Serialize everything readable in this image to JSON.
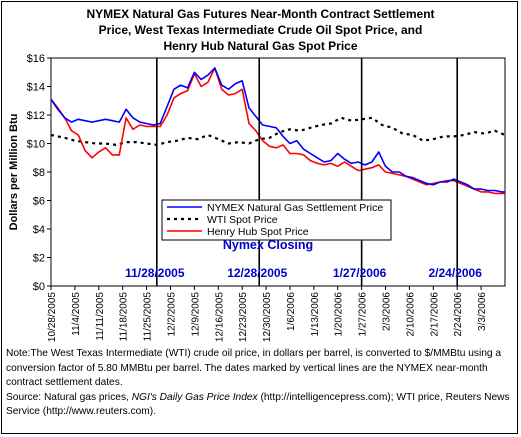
{
  "chart_data": {
    "type": "line",
    "title": [
      "NYMEX Natural Gas Futures Near-Month Contract Settlement",
      "Price, West Texas Intermediate Crude Oil Spot Price, and",
      "Henry Hub Natural Gas Spot Price"
    ],
    "ylabel": "Dollars per Million Btu",
    "ylim": [
      0,
      16
    ],
    "yticks": [
      0,
      2,
      4,
      6,
      8,
      10,
      12,
      14,
      16
    ],
    "ytick_labels": [
      "$0",
      "$2",
      "$4",
      "$6",
      "$8",
      "$10",
      "$12",
      "$14",
      "$16"
    ],
    "x_start": "10/28/2005",
    "x_end": "3/10/2006",
    "xtick_labels": [
      "10/28/2005",
      "11/4/2005",
      "11/11/2005",
      "11/18/2005",
      "11/25/2005",
      "12/2/2005",
      "12/9/2005",
      "12/16/2005",
      "12/23/2005",
      "12/30/2005",
      "1/6/2006",
      "1/13/2006",
      "1/20/2006",
      "1/27/2006",
      "2/3/2006",
      "2/10/2006",
      "2/17/2006",
      "2/24/2006",
      "3/3/2006"
    ],
    "grid": false,
    "legend_position": "center-right",
    "vertical_line_title": "Nymex Closing",
    "vertical_lines": [
      {
        "date": "11/28/2005",
        "label": "11/28/2005"
      },
      {
        "date": "12/28/2005",
        "label": "12/28/2005"
      },
      {
        "date": "1/27/2006",
        "label": "1/27/2006"
      },
      {
        "date": "2/24/2006",
        "label": "2/24/2006"
      }
    ],
    "series": [
      {
        "name": "NYMEX Natural Gas Settlement Price",
        "color": "#0000ff",
        "style": "solid",
        "points": [
          [
            "10/28/2005",
            13.1
          ],
          [
            "10/30/2005",
            12.4
          ],
          [
            "11/1/2005",
            11.8
          ],
          [
            "11/3/2005",
            11.5
          ],
          [
            "11/5/2005",
            11.7
          ],
          [
            "11/7/2005",
            11.6
          ],
          [
            "11/9/2005",
            11.5
          ],
          [
            "11/11/2005",
            11.6
          ],
          [
            "11/13/2005",
            11.7
          ],
          [
            "11/15/2005",
            11.6
          ],
          [
            "11/17/2005",
            11.5
          ],
          [
            "11/19/2005",
            12.4
          ],
          [
            "11/21/2005",
            11.8
          ],
          [
            "11/23/2005",
            11.5
          ],
          [
            "11/25/2005",
            11.4
          ],
          [
            "11/27/2005",
            11.3
          ],
          [
            "11/29/2005",
            11.4
          ],
          [
            "12/1/2005",
            12.6
          ],
          [
            "12/3/2005",
            13.8
          ],
          [
            "12/5/2005",
            14.1
          ],
          [
            "12/7/2005",
            13.9
          ],
          [
            "12/9/2005",
            15.0
          ],
          [
            "12/11/2005",
            14.5
          ],
          [
            "12/13/2005",
            14.8
          ],
          [
            "12/15/2005",
            15.3
          ],
          [
            "12/17/2005",
            14.1
          ],
          [
            "12/19/2005",
            13.8
          ],
          [
            "12/21/2005",
            14.2
          ],
          [
            "12/23/2005",
            14.4
          ],
          [
            "12/25/2005",
            12.5
          ],
          [
            "12/27/2005",
            11.9
          ],
          [
            "12/29/2005",
            11.3
          ],
          [
            "12/31/2005",
            11.2
          ],
          [
            "1/2/2006",
            11.1
          ],
          [
            "1/4/2006",
            10.5
          ],
          [
            "1/6/2006",
            10.0
          ],
          [
            "1/8/2006",
            10.2
          ],
          [
            "1/10/2006",
            9.6
          ],
          [
            "1/12/2006",
            9.3
          ],
          [
            "1/14/2006",
            9.0
          ],
          [
            "1/16/2006",
            8.7
          ],
          [
            "1/18/2006",
            8.8
          ],
          [
            "1/20/2006",
            9.3
          ],
          [
            "1/22/2006",
            8.9
          ],
          [
            "1/24/2006",
            8.6
          ],
          [
            "1/26/2006",
            8.7
          ],
          [
            "1/28/2006",
            8.5
          ],
          [
            "1/30/2006",
            8.7
          ],
          [
            "2/1/2006",
            9.4
          ],
          [
            "2/3/2006",
            8.4
          ],
          [
            "2/5/2006",
            8.0
          ],
          [
            "2/7/2006",
            8.0
          ],
          [
            "2/9/2006",
            7.7
          ],
          [
            "2/11/2006",
            7.6
          ],
          [
            "2/13/2006",
            7.4
          ],
          [
            "2/15/2006",
            7.2
          ],
          [
            "2/17/2006",
            7.1
          ],
          [
            "2/19/2006",
            7.3
          ],
          [
            "2/21/2006",
            7.3
          ],
          [
            "2/23/2006",
            7.5
          ],
          [
            "2/25/2006",
            7.3
          ],
          [
            "2/27/2006",
            7.1
          ],
          [
            "3/1/2006",
            6.8
          ],
          [
            "3/3/2006",
            6.8
          ],
          [
            "3/5/2006",
            6.7
          ],
          [
            "3/7/2006",
            6.7
          ],
          [
            "3/9/2006",
            6.6
          ],
          [
            "3/10/2006",
            6.6
          ]
        ]
      },
      {
        "name": "WTI Spot Price",
        "color": "#000000",
        "style": "dashed",
        "points": [
          [
            "10/28/2005",
            10.6
          ],
          [
            "11/1/2005",
            10.4
          ],
          [
            "11/4/2005",
            10.2
          ],
          [
            "11/7/2005",
            10.1
          ],
          [
            "11/10/2005",
            10.0
          ],
          [
            "11/13/2005",
            10.0
          ],
          [
            "11/16/2005",
            9.9
          ],
          [
            "11/19/2005",
            10.1
          ],
          [
            "11/22/2005",
            10.1
          ],
          [
            "11/25/2005",
            10.0
          ],
          [
            "11/28/2005",
            9.9
          ],
          [
            "12/1/2005",
            10.1
          ],
          [
            "12/4/2005",
            10.2
          ],
          [
            "12/7/2005",
            10.4
          ],
          [
            "12/10/2005",
            10.3
          ],
          [
            "12/13/2005",
            10.6
          ],
          [
            "12/16/2005",
            10.3
          ],
          [
            "12/19/2005",
            10.0
          ],
          [
            "12/22/2005",
            10.1
          ],
          [
            "12/25/2005",
            10.0
          ],
          [
            "12/28/2005",
            10.3
          ],
          [
            "12/31/2005",
            10.4
          ],
          [
            "1/3/2006",
            10.8
          ],
          [
            "1/6/2006",
            11.0
          ],
          [
            "1/9/2006",
            10.9
          ],
          [
            "1/12/2006",
            11.1
          ],
          [
            "1/15/2006",
            11.3
          ],
          [
            "1/18/2006",
            11.4
          ],
          [
            "1/21/2006",
            11.8
          ],
          [
            "1/24/2006",
            11.6
          ],
          [
            "1/27/2006",
            11.7
          ],
          [
            "1/30/2006",
            11.8
          ],
          [
            "2/2/2006",
            11.3
          ],
          [
            "2/5/2006",
            11.1
          ],
          [
            "2/8/2006",
            10.7
          ],
          [
            "2/11/2006",
            10.6
          ],
          [
            "2/14/2006",
            10.2
          ],
          [
            "2/17/2006",
            10.3
          ],
          [
            "2/20/2006",
            10.5
          ],
          [
            "2/23/2006",
            10.5
          ],
          [
            "2/26/2006",
            10.6
          ],
          [
            "3/1/2006",
            10.8
          ],
          [
            "3/4/2006",
            10.7
          ],
          [
            "3/7/2006",
            10.9
          ],
          [
            "3/10/2006",
            10.6
          ]
        ]
      },
      {
        "name": "Henry Hub Spot Price",
        "color": "#ff0000",
        "style": "solid",
        "points": [
          [
            "10/28/2005",
            13.1
          ],
          [
            "10/30/2005",
            12.5
          ],
          [
            "11/1/2005",
            11.8
          ],
          [
            "11/3/2005",
            10.9
          ],
          [
            "11/5/2005",
            10.6
          ],
          [
            "11/7/2005",
            9.5
          ],
          [
            "11/9/2005",
            9.0
          ],
          [
            "11/11/2005",
            9.4
          ],
          [
            "11/13/2005",
            9.7
          ],
          [
            "11/15/2005",
            9.2
          ],
          [
            "11/17/2005",
            9.2
          ],
          [
            "11/19/2005",
            11.8
          ],
          [
            "11/21/2005",
            11.0
          ],
          [
            "11/23/2005",
            11.3
          ],
          [
            "11/25/2005",
            11.2
          ],
          [
            "11/27/2005",
            11.2
          ],
          [
            "11/29/2005",
            11.2
          ],
          [
            "12/1/2005",
            12.0
          ],
          [
            "12/3/2005",
            13.2
          ],
          [
            "12/5/2005",
            13.5
          ],
          [
            "12/7/2005",
            13.7
          ],
          [
            "12/9/2005",
            14.9
          ],
          [
            "12/11/2005",
            14.0
          ],
          [
            "12/13/2005",
            14.3
          ],
          [
            "12/15/2005",
            15.3
          ],
          [
            "12/17/2005",
            13.8
          ],
          [
            "12/19/2005",
            13.4
          ],
          [
            "12/21/2005",
            13.5
          ],
          [
            "12/23/2005",
            13.8
          ],
          [
            "12/25/2005",
            11.4
          ],
          [
            "12/27/2005",
            10.9
          ],
          [
            "12/29/2005",
            10.2
          ],
          [
            "12/31/2005",
            9.8
          ],
          [
            "1/2/2006",
            9.7
          ],
          [
            "1/4/2006",
            9.9
          ],
          [
            "1/6/2006",
            9.3
          ],
          [
            "1/8/2006",
            9.3
          ],
          [
            "1/10/2006",
            9.2
          ],
          [
            "1/12/2006",
            8.8
          ],
          [
            "1/14/2006",
            8.6
          ],
          [
            "1/16/2006",
            8.5
          ],
          [
            "1/18/2006",
            8.6
          ],
          [
            "1/20/2006",
            8.4
          ],
          [
            "1/22/2006",
            8.7
          ],
          [
            "1/24/2006",
            8.4
          ],
          [
            "1/26/2006",
            8.1
          ],
          [
            "1/28/2006",
            8.2
          ],
          [
            "1/30/2006",
            8.3
          ],
          [
            "2/1/2006",
            8.5
          ],
          [
            "2/3/2006",
            8.0
          ],
          [
            "2/5/2006",
            7.9
          ],
          [
            "2/7/2006",
            7.8
          ],
          [
            "2/9/2006",
            7.7
          ],
          [
            "2/11/2006",
            7.5
          ],
          [
            "2/13/2006",
            7.3
          ],
          [
            "2/15/2006",
            7.1
          ],
          [
            "2/17/2006",
            7.2
          ],
          [
            "2/19/2006",
            7.3
          ],
          [
            "2/21/2006",
            7.4
          ],
          [
            "2/23/2006",
            7.4
          ],
          [
            "2/25/2006",
            7.2
          ],
          [
            "2/27/2006",
            7.0
          ],
          [
            "3/1/2006",
            6.8
          ],
          [
            "3/3/2006",
            6.6
          ],
          [
            "3/5/2006",
            6.6
          ],
          [
            "3/7/2006",
            6.5
          ],
          [
            "3/9/2006",
            6.5
          ],
          [
            "3/10/2006",
            6.5
          ]
        ]
      }
    ]
  },
  "note": {
    "line1": "Note:The West Texas Intermediate (WTI) crude oil price, in dollars per barrel,  is converted to $/MMBtu using a conversion factor of 5.80 MMBtu per barrel.  The dates marked by vertical lines are the NYMEX near-month contract settlement dates.",
    "source_prefix": "Source: Natural gas prices, ",
    "source_italic": "NGI's Daily Gas Price Index",
    "source_suffix": " (http://intelligencepress.com); WTI price, Reuters News Service (http://www.reuters.com)."
  }
}
